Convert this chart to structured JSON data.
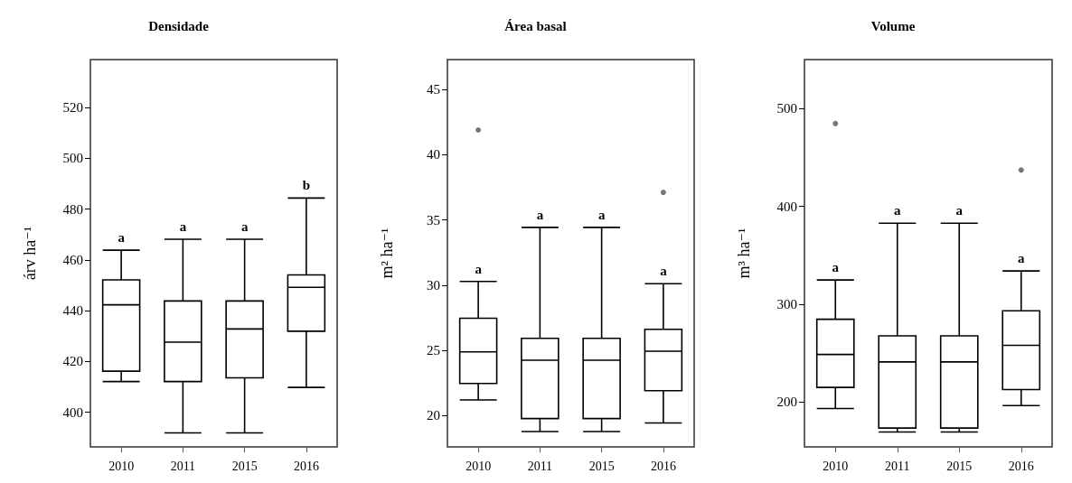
{
  "chart_data": [
    {
      "type": "box",
      "title": "Densidade",
      "ylabel": "árv ha⁻¹",
      "categories": [
        "2010",
        "2011",
        "2015",
        "2016"
      ],
      "ylim": [
        386.4,
        538.8
      ],
      "yticks": [
        400,
        420,
        440,
        460,
        480,
        500,
        520
      ],
      "grid": false,
      "color": "#000000",
      "boxes": [
        {
          "low": 412.1,
          "q1": 416.2,
          "median": 442.3,
          "q3": 452.1,
          "high": 463.8
        },
        {
          "low": 391.9,
          "q1": 412.1,
          "median": 427.6,
          "q3": 443.8,
          "high": 468.1
        },
        {
          "low": 391.9,
          "q1": 413.6,
          "median": 432.8,
          "q3": 443.8,
          "high": 468.1
        },
        {
          "low": 409.8,
          "q1": 431.9,
          "median": 449.2,
          "q3": 454.1,
          "high": 484.3
        }
      ],
      "annotations": [
        "a",
        "a",
        "a",
        "b"
      ]
    },
    {
      "type": "box",
      "title": "Área basal",
      "ylabel": "m² ha⁻¹",
      "categories": [
        "2010",
        "2011",
        "2015",
        "2016"
      ],
      "ylim": [
        17.6,
        47.3
      ],
      "yticks": [
        20,
        25,
        30,
        35,
        40,
        45
      ],
      "grid": false,
      "color": "#000000",
      "boxes": [
        {
          "low": 21.2,
          "q1": 22.46,
          "median": 24.89,
          "q3": 27.47,
          "high": 30.29,
          "outliers": [
            41.9
          ]
        },
        {
          "low": 18.78,
          "q1": 19.77,
          "median": 24.25,
          "q3": 25.93,
          "high": 34.43
        },
        {
          "low": 18.78,
          "q1": 19.77,
          "median": 24.25,
          "q3": 25.93,
          "high": 34.43
        },
        {
          "low": 19.43,
          "q1": 21.91,
          "median": 24.94,
          "q3": 26.62,
          "high": 30.11,
          "outliers": [
            37.12
          ]
        }
      ],
      "annotations": [
        "a",
        "a",
        "a",
        "a"
      ]
    },
    {
      "type": "box",
      "title": "Volume",
      "ylabel": "m³ ha⁻¹",
      "categories": [
        "2010",
        "2011",
        "2015",
        "2016"
      ],
      "ylim": [
        154,
        550
      ],
      "yticks": [
        200,
        300,
        400,
        500
      ],
      "grid": false,
      "color": "#000000",
      "boxes": [
        {
          "low": 193.3,
          "q1": 214.8,
          "median": 248.5,
          "q3": 284.5,
          "high": 324.7,
          "outliers": [
            484.6
          ]
        },
        {
          "low": 169.3,
          "q1": 173.3,
          "median": 240.9,
          "q3": 267.6,
          "high": 382.7
        },
        {
          "low": 169.3,
          "q1": 173.3,
          "median": 240.9,
          "q3": 267.6,
          "high": 382.7
        },
        {
          "low": 196.3,
          "q1": 212.6,
          "median": 257.8,
          "q3": 293.1,
          "high": 333.9,
          "outliers": [
            437.1
          ]
        }
      ],
      "annotations": [
        "a",
        "a",
        "a",
        "a"
      ]
    }
  ]
}
